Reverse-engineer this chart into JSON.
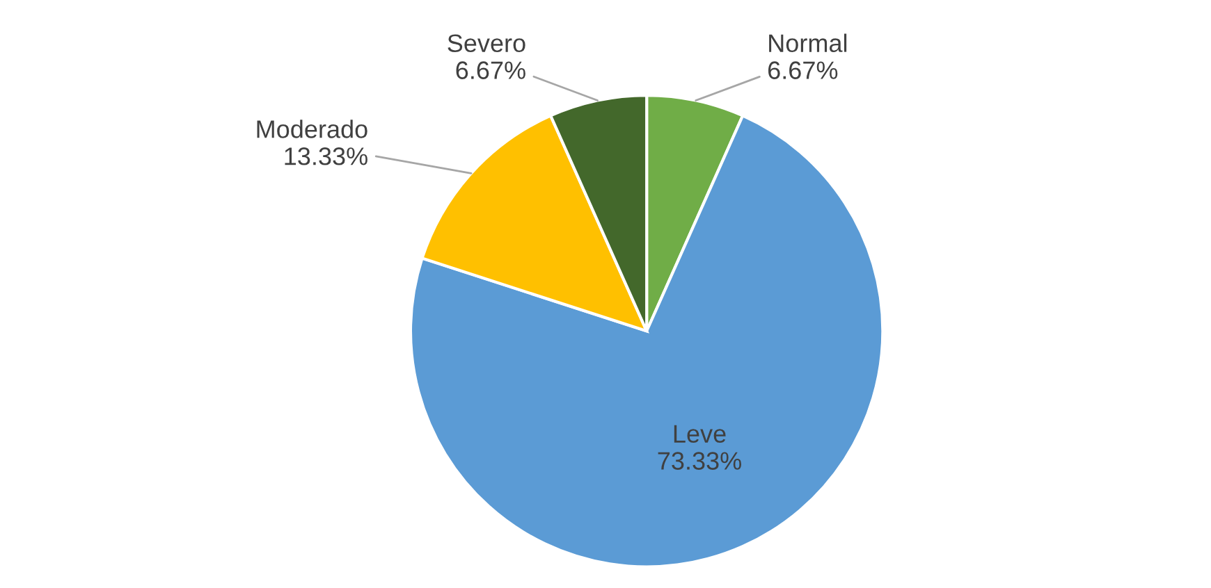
{
  "chart_data": {
    "type": "pie",
    "categories": [
      "Normal",
      "Leve",
      "Moderado",
      "Severo"
    ],
    "values": [
      6.67,
      73.33,
      13.33,
      6.67
    ],
    "value_labels": [
      "6.67%",
      "73.33%",
      "13.33%",
      "6.67%"
    ],
    "colors": [
      "#70ad47",
      "#5b9bd5",
      "#ffc000",
      "#43682b"
    ],
    "legend": false
  }
}
